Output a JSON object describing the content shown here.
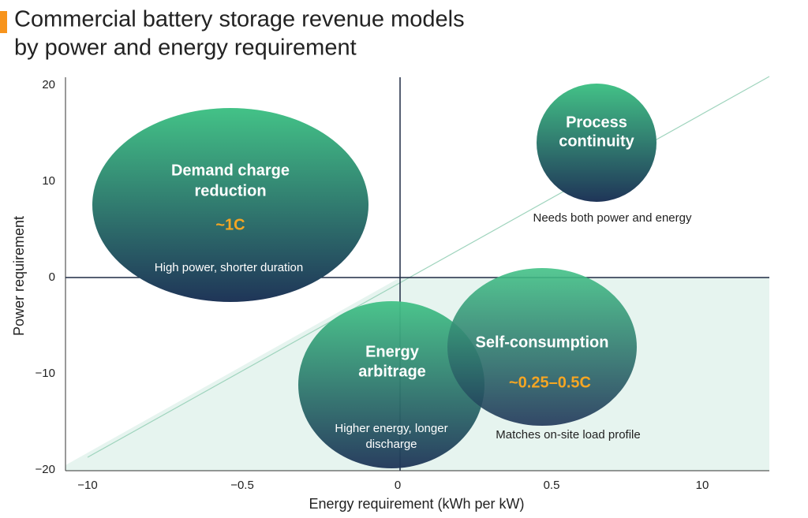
{
  "title": [
    "Commercial battery storage revenue models",
    "by power and energy requirement"
  ],
  "axes": {
    "y_label": "Power requirement",
    "x_label": "Energy requirement (kWh per kW)",
    "y_ticks": [
      "20",
      "10",
      "0",
      "−10",
      "−20"
    ],
    "x_ticks": [
      "−10",
      "−0.5",
      "0",
      "0.5",
      "10"
    ]
  },
  "bubbles": [
    {
      "title": [
        "Demand charge",
        "reduction"
      ],
      "rate": "~1C",
      "note": [
        "High power, shorter duration"
      ]
    },
    {
      "title": [
        "Process",
        "continuity"
      ],
      "note": [
        "Needs both power and energy"
      ]
    },
    {
      "title": [
        "Energy",
        "arbitrage"
      ],
      "note": [
        "Higher energy, longer",
        "discharge"
      ]
    },
    {
      "title": [
        "Self-consumption"
      ],
      "rate": "~0.25–0.5C",
      "note": [
        "Matches on-site load profile"
      ]
    }
  ]
}
